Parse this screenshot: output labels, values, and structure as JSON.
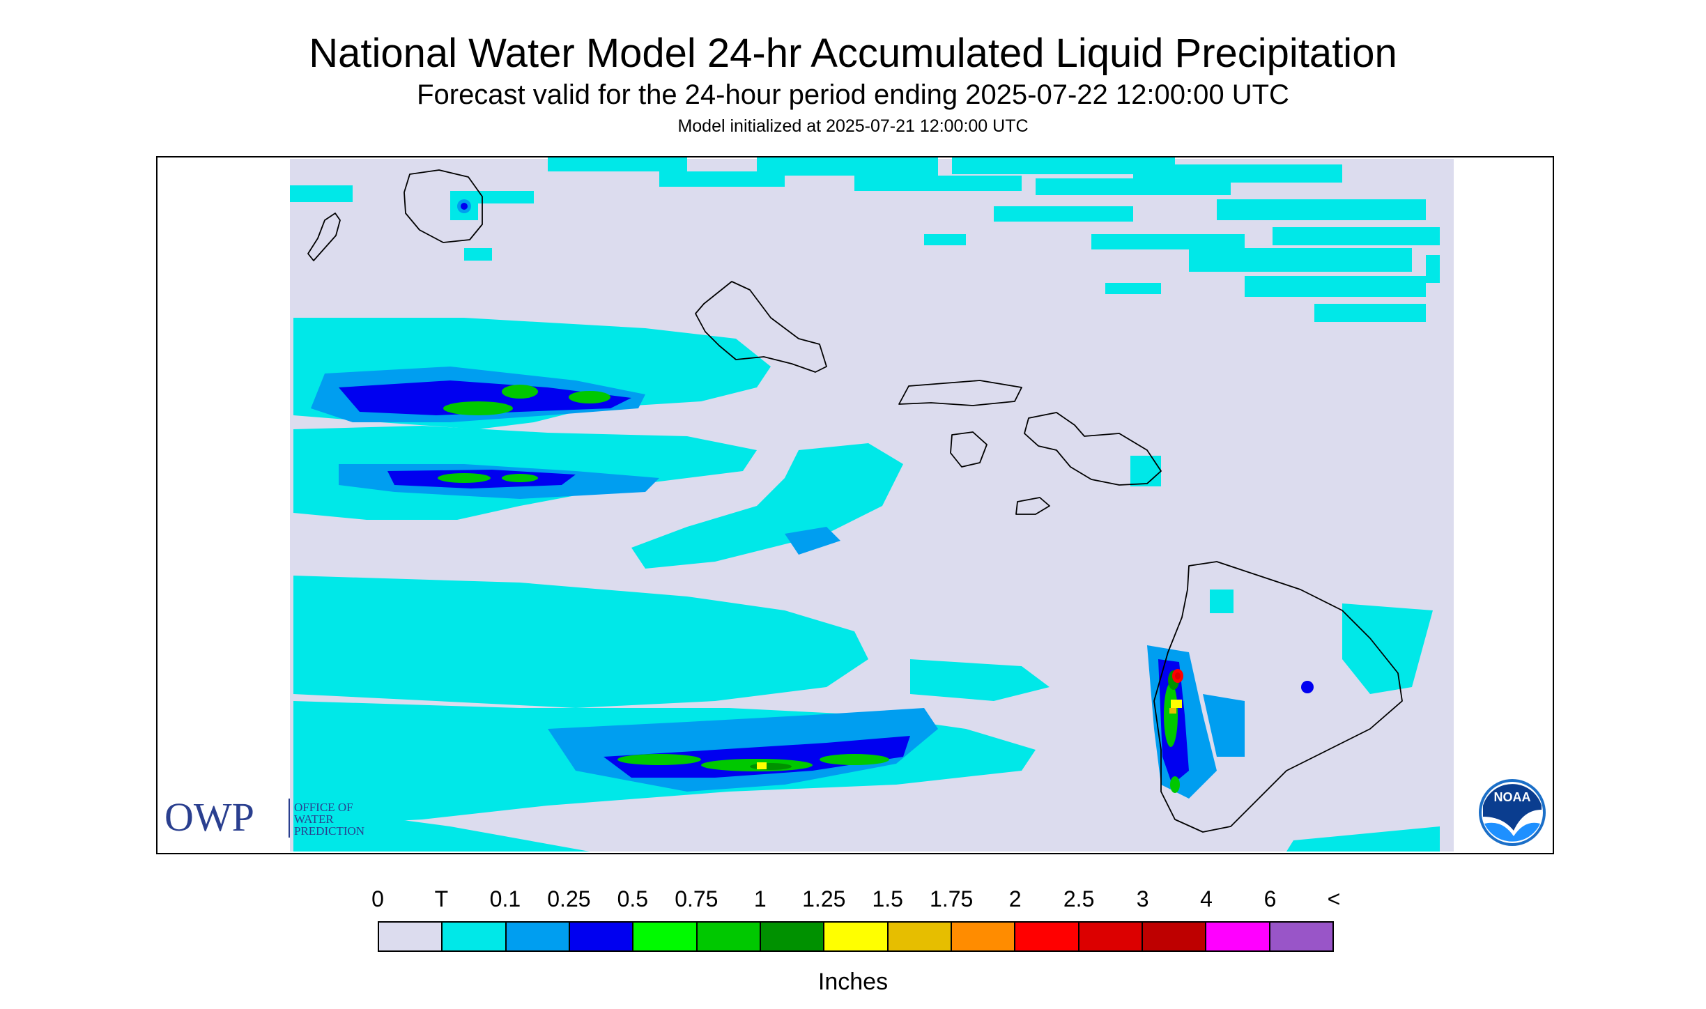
{
  "header": {
    "title": "National Water Model 24-hr Accumulated Liquid Precipitation",
    "subtitle": "Forecast valid for the 24-hour period ending 2025-07-22 12:00:00 UTC",
    "init": "Model initialized at 2025-07-21 12:00:00 UTC"
  },
  "map": {
    "region": "Hawaiian Islands",
    "background_color": "#dcdcee",
    "coast_color": "#000000"
  },
  "logos": {
    "owp_abbr": "OWP",
    "owp_line1": "OFFICE OF",
    "owp_line2": "WATER",
    "owp_line3": "PREDICTION",
    "noaa_text": "NOAA"
  },
  "legend": {
    "labels": [
      "0",
      "T",
      "0.1",
      "0.25",
      "0.5",
      "0.75",
      "1",
      "1.25",
      "1.5",
      "1.75",
      "2",
      "2.5",
      "3",
      "4",
      "6",
      "<"
    ],
    "colors": [
      "#dcdcee",
      "#00e8e8",
      "#009ef0",
      "#0000f0",
      "#00fa00",
      "#00c800",
      "#009100",
      "#ffff00",
      "#e6be00",
      "#ff8c00",
      "#ff0000",
      "#dc0000",
      "#be0000",
      "#ff00ff",
      "#9955c8"
    ],
    "units": "Inches"
  }
}
